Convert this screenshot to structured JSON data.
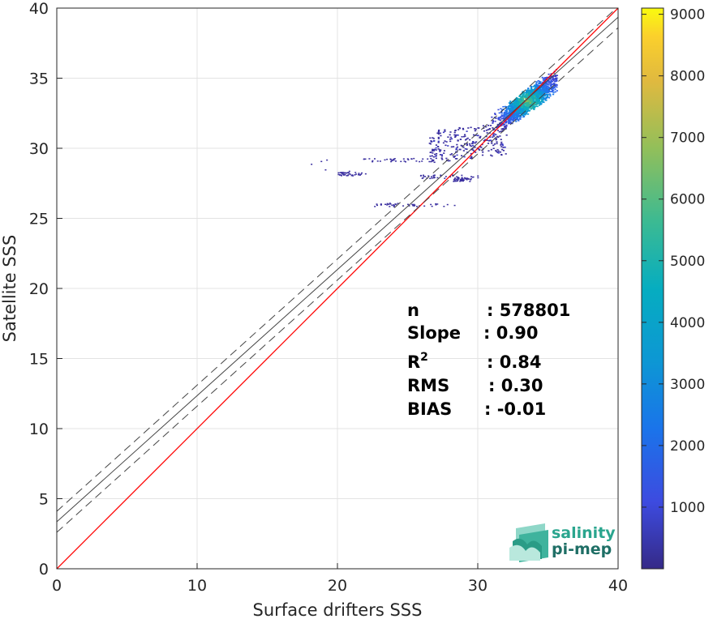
{
  "chart_data": {
    "type": "heatmap",
    "title": "",
    "xlabel": "Surface drifters SSS",
    "ylabel": "Satellite SSS",
    "xlim": [
      0,
      40
    ],
    "ylim": [
      0,
      40
    ],
    "xticks": [
      "0",
      "10",
      "20",
      "30",
      "40"
    ],
    "yticks": [
      "0",
      "5",
      "10",
      "15",
      "20",
      "25",
      "30",
      "35",
      "40"
    ],
    "grid": true,
    "colorbar": {
      "colormap": "parula",
      "range": [
        0,
        9100
      ],
      "ticks": [
        "1000",
        "2000",
        "3000",
        "4000",
        "5000",
        "6000",
        "7000",
        "8000",
        "9000"
      ]
    },
    "lines": [
      {
        "name": "1:1",
        "slope": 1.0,
        "intercept": 0.0,
        "color": "#ff0000",
        "style": "solid"
      },
      {
        "name": "fit",
        "slope": 0.9,
        "intercept": 3.35,
        "color": "#444444",
        "style": "solid"
      },
      {
        "name": "fit+",
        "slope": 0.9,
        "intercept": 4.1,
        "color": "#444444",
        "style": "dashed"
      },
      {
        "name": "fit-",
        "slope": 0.9,
        "intercept": 2.6,
        "color": "#444444",
        "style": "dashed"
      }
    ],
    "density_cluster": {
      "x_range": [
        18,
        35.5
      ],
      "y_range": [
        28,
        35.8
      ],
      "peak": [
        33.5,
        33.4
      ]
    },
    "stats": [
      {
        "label": "n",
        "sup": "",
        "value": ": 578801"
      },
      {
        "label": "Slope",
        "sup": "",
        "value": ": 0.90"
      },
      {
        "label": "R",
        "sup": "2",
        "value": ": 0.84"
      },
      {
        "label": "RMS",
        "sup": "",
        "value": ": 0.30"
      },
      {
        "label": "BIAS",
        "sup": "",
        "value": ": -0.01"
      }
    ]
  },
  "logo": {
    "line1": "salinity",
    "line2": "pi-mep"
  }
}
